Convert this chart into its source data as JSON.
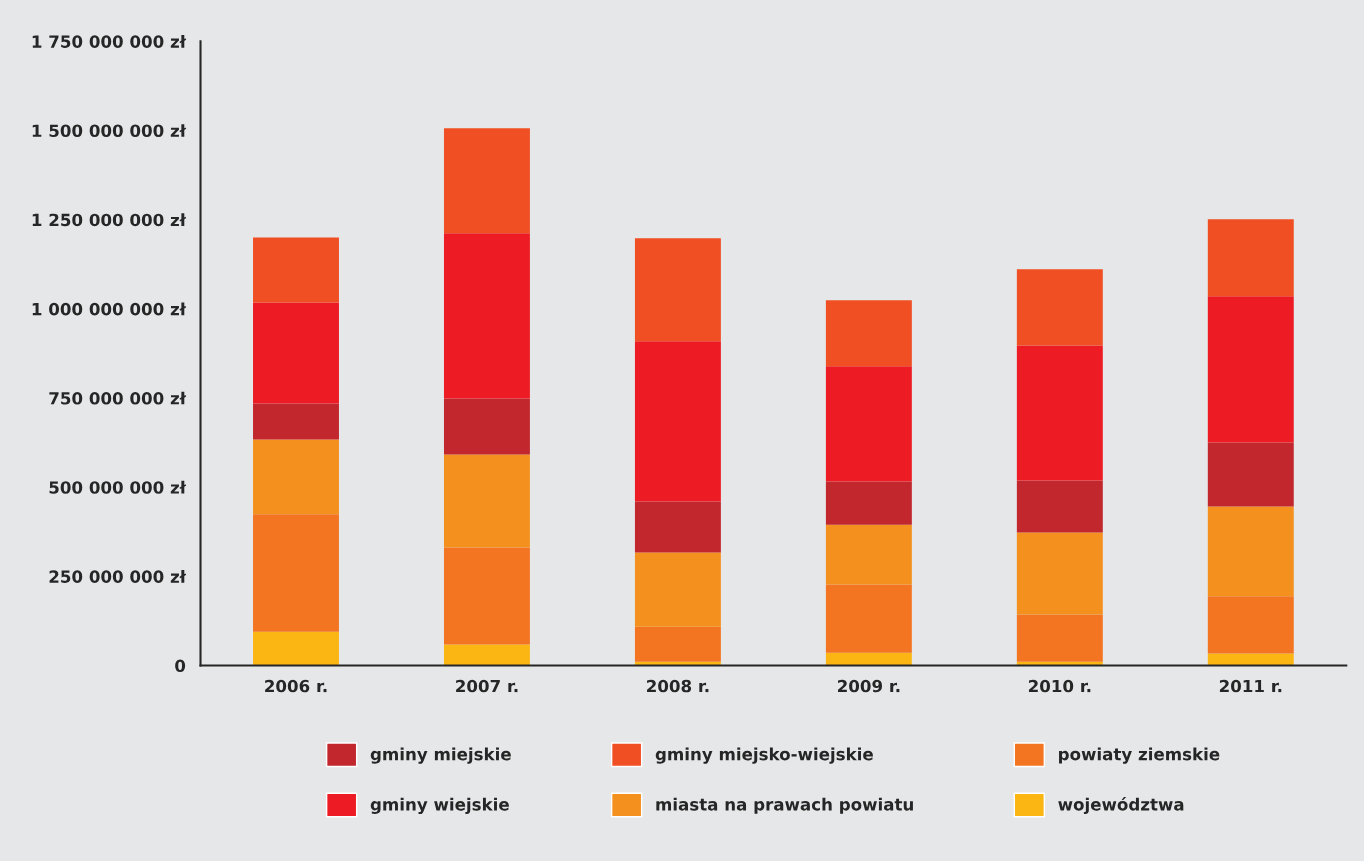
{
  "chart_data": {
    "type": "bar",
    "stacked": true,
    "categories": [
      "2006 r.",
      "2007 r.",
      "2008 r.",
      "2009 r.",
      "2010 r.",
      "2011 r."
    ],
    "series": [
      {
        "name": "województwa",
        "color": "#fbb614",
        "values": [
          95000000,
          59000000,
          11000000,
          36000000,
          11000000,
          34000000
        ]
      },
      {
        "name": "powiaty ziemskie",
        "color": "#f37522",
        "values": [
          329000000,
          272000000,
          98000000,
          191000000,
          132000000,
          160000000
        ]
      },
      {
        "name": "miasta na prawach powiatu",
        "color": "#f4901e",
        "values": [
          210000000,
          261000000,
          208000000,
          168000000,
          230000000,
          252000000
        ]
      },
      {
        "name": "gminy miejskie",
        "color": "#c1272d",
        "values": [
          101000000,
          157000000,
          143000000,
          121000000,
          146000000,
          179000000
        ]
      },
      {
        "name": "gminy wiejskie",
        "color": "#ed1c24",
        "values": [
          283000000,
          463000000,
          449000000,
          323000000,
          378000000,
          410000000
        ]
      },
      {
        "name": "gminy miejsko-wiejskie",
        "color": "#f04e23",
        "values": [
          182000000,
          294000000,
          289000000,
          185000000,
          214000000,
          216000000
        ]
      }
    ],
    "ylim": [
      0,
      1750000000
    ],
    "yticks": [
      {
        "value": 0,
        "label": "0"
      },
      {
        "value": 250000000,
        "label": "250 000 000 zł"
      },
      {
        "value": 500000000,
        "label": "500 000 000 zł"
      },
      {
        "value": 750000000,
        "label": "750 000 000 zł"
      },
      {
        "value": 1000000000,
        "label": "1 000 000 000 zł"
      },
      {
        "value": 1250000000,
        "label": "1 250 000 000 zł"
      },
      {
        "value": 1500000000,
        "label": "1 500 000 000 zł"
      },
      {
        "value": 1750000000,
        "label": "1 750 000 000 zł"
      }
    ],
    "grid": false,
    "legend": "bottom"
  }
}
